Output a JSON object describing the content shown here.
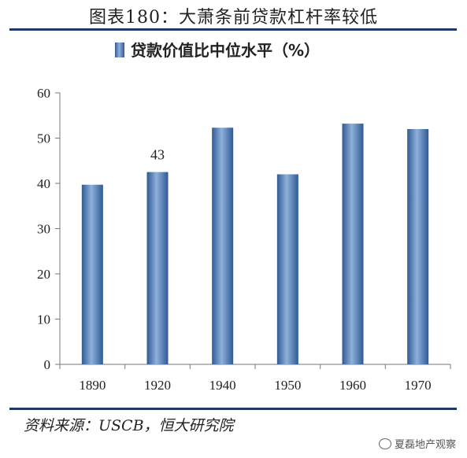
{
  "figure": {
    "title": "图表180：大萧条前贷款杠杆率较低",
    "source": "资料来源：USCB，恒大研究院",
    "watermark": "夏磊地产观察",
    "watermark_icon": "wechat-icon"
  },
  "colors": {
    "bar": "#4f81bd",
    "bar_light": "#8fb0da",
    "bar_dark": "#2f5a94",
    "rule": "#1f3864"
  },
  "chart_data": {
    "type": "bar",
    "categories": [
      "1890",
      "1920",
      "1940",
      "1950",
      "1960",
      "1970"
    ],
    "series": [
      {
        "name": "贷款价值比中位水平（%）",
        "values": [
          39.7,
          42.5,
          52.3,
          42.0,
          53.2,
          52.0
        ]
      }
    ],
    "data_labels": [
      null,
      "43",
      null,
      null,
      null,
      null
    ],
    "ylim": [
      0,
      60
    ],
    "yticks": [
      "0",
      "10",
      "20",
      "30",
      "40",
      "50",
      "60"
    ],
    "legend_position": "top",
    "grid": false
  }
}
